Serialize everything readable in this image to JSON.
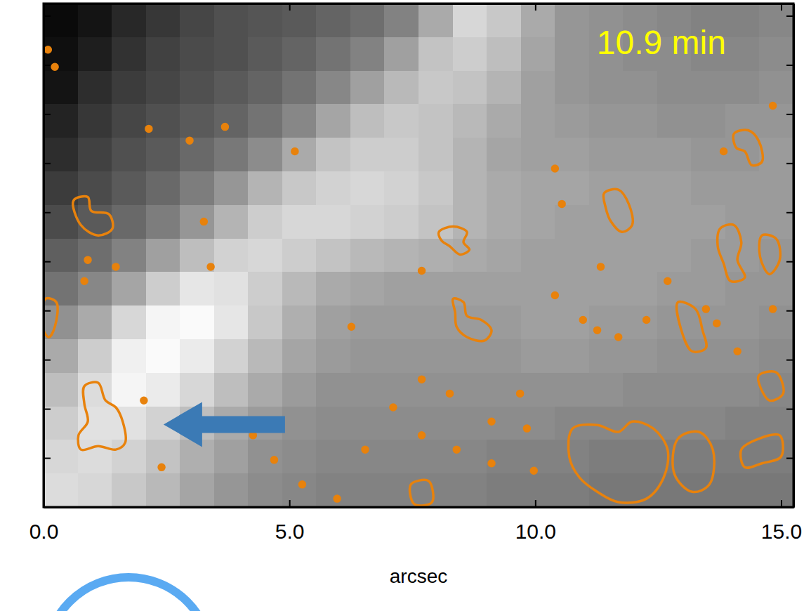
{
  "chart_data": {
    "type": "heatmap",
    "annotation": "10.9 min",
    "xlabel": "arcsec",
    "xlim": [
      0,
      15.25
    ],
    "xticks": [
      {
        "value": 0,
        "label": "0.0"
      },
      {
        "value": 5,
        "label": "5.0"
      },
      {
        "value": 10,
        "label": "10.0"
      },
      {
        "value": 15,
        "label": "15.0"
      }
    ],
    "ylim": [
      0,
      10.25
    ],
    "yticks": [
      0,
      1,
      2,
      3,
      4,
      5,
      6,
      7,
      8,
      9,
      10
    ],
    "tick_labels": "x",
    "crange": [
      0,
      255
    ],
    "cells": [
      [
        10,
        20,
        40,
        55,
        70,
        80,
        85,
        90,
        100,
        110,
        130,
        170,
        215,
        200,
        170,
        150,
        145,
        140,
        135,
        130,
        130,
        135
      ],
      [
        15,
        30,
        50,
        65,
        75,
        80,
        90,
        100,
        115,
        130,
        160,
        195,
        205,
        190,
        165,
        150,
        145,
        140,
        140,
        135,
        135,
        140
      ],
      [
        20,
        45,
        60,
        70,
        80,
        90,
        100,
        115,
        135,
        160,
        185,
        200,
        195,
        180,
        160,
        150,
        145,
        145,
        140,
        140,
        140,
        145
      ],
      [
        35,
        55,
        70,
        80,
        90,
        100,
        115,
        135,
        165,
        190,
        200,
        195,
        185,
        170,
        160,
        155,
        150,
        150,
        145,
        145,
        150,
        150
      ],
      [
        45,
        65,
        80,
        90,
        105,
        120,
        140,
        170,
        195,
        205,
        205,
        195,
        180,
        165,
        160,
        160,
        155,
        155,
        155,
        150,
        150,
        155
      ],
      [
        60,
        75,
        90,
        105,
        125,
        150,
        180,
        200,
        210,
        215,
        210,
        200,
        180,
        170,
        165,
        165,
        160,
        160,
        160,
        155,
        155,
        155
      ],
      [
        75,
        90,
        105,
        125,
        150,
        180,
        205,
        215,
        215,
        210,
        205,
        195,
        180,
        170,
        165,
        160,
        160,
        160,
        160,
        160,
        155,
        155
      ],
      [
        95,
        110,
        130,
        160,
        190,
        210,
        215,
        205,
        195,
        185,
        180,
        175,
        170,
        165,
        160,
        160,
        160,
        160,
        160,
        155,
        155,
        150
      ],
      [
        115,
        135,
        165,
        205,
        230,
        225,
        205,
        185,
        170,
        165,
        160,
        160,
        160,
        160,
        160,
        160,
        160,
        160,
        155,
        155,
        150,
        150
      ],
      [
        145,
        170,
        215,
        245,
        250,
        230,
        200,
        175,
        160,
        155,
        155,
        155,
        155,
        155,
        160,
        160,
        155,
        155,
        150,
        150,
        150,
        145
      ],
      [
        170,
        205,
        240,
        250,
        235,
        210,
        185,
        165,
        155,
        150,
        150,
        150,
        150,
        150,
        155,
        155,
        150,
        150,
        145,
        145,
        145,
        140
      ],
      [
        190,
        220,
        245,
        235,
        215,
        190,
        170,
        155,
        145,
        145,
        145,
        145,
        145,
        145,
        145,
        145,
        145,
        140,
        140,
        140,
        140,
        135
      ],
      [
        205,
        225,
        225,
        210,
        190,
        170,
        155,
        145,
        140,
        140,
        140,
        140,
        140,
        140,
        140,
        135,
        135,
        135,
        135,
        135,
        130,
        130
      ],
      [
        215,
        220,
        210,
        195,
        175,
        160,
        145,
        140,
        135,
        135,
        135,
        135,
        135,
        130,
        130,
        130,
        125,
        125,
        125,
        125,
        125,
        125
      ],
      [
        220,
        215,
        200,
        185,
        165,
        150,
        140,
        135,
        130,
        130,
        130,
        130,
        130,
        125,
        125,
        125,
        120,
        120,
        120,
        120,
        120,
        120
      ]
    ],
    "contours": [
      {
        "x": [
          0.83,
          1.11,
          1.26,
          1.47,
          1.61,
          1.66,
          1.47,
          1.11,
          0.76,
          0.71,
          0.9,
          0.83
        ],
        "y": [
          2.46,
          2.53,
          2.17,
          2.03,
          1.74,
          1.31,
          1.17,
          1.24,
          1.17,
          1.46,
          1.74,
          2.1
        ]
      },
      {
        "x": [
          8.04,
          8.33,
          8.61,
          8.54,
          8.66,
          8.47,
          8.26,
          8.09
        ],
        "y": [
          5.6,
          5.71,
          5.6,
          5.39,
          5.24,
          5.14,
          5.31,
          5.43
        ]
      },
      {
        "x": [
          8.33,
          8.54,
          8.61,
          8.9,
          9.11,
          8.97,
          8.61,
          8.4,
          8.37
        ],
        "y": [
          4.24,
          4.17,
          3.89,
          3.81,
          3.6,
          3.39,
          3.46,
          3.67,
          3.96
        ]
      },
      {
        "x": [
          11.4,
          11.69,
          11.9,
          11.97,
          11.76,
          11.54,
          11.43
        ],
        "y": [
          6.39,
          6.46,
          6.17,
          5.74,
          5.6,
          5.81,
          6.1
        ]
      },
      {
        "x": [
          14.04,
          14.33,
          14.54,
          14.61,
          14.4,
          14.26,
          14.09
        ],
        "y": [
          7.6,
          7.67,
          7.46,
          7.03,
          6.96,
          7.24,
          7.31
        ]
      },
      {
        "x": [
          13.76,
          14.04,
          14.19,
          14.11,
          14.26,
          13.97,
          13.83,
          13.71
        ],
        "y": [
          5.67,
          5.74,
          5.39,
          5.03,
          4.67,
          4.6,
          4.96,
          5.31
        ]
      },
      {
        "x": [
          10.76,
          11.26,
          11.69,
          11.97,
          12.4,
          12.69,
          12.61,
          12.26,
          11.69,
          11.26,
          10.9,
          10.69
        ],
        "y": [
          1.6,
          1.67,
          1.53,
          1.74,
          1.6,
          1.17,
          0.6,
          0.17,
          0.1,
          0.31,
          0.6,
          1.03
        ]
      },
      {
        "x": [
          12.9,
          13.33,
          13.61,
          13.54,
          13.19,
          12.83
        ],
        "y": [
          1.39,
          1.53,
          1.17,
          0.46,
          0.31,
          0.67
        ]
      },
      {
        "x": [
          14.19,
          14.54,
          14.97,
          15.0,
          14.61,
          14.26
        ],
        "y": [
          1.17,
          1.39,
          1.46,
          1.03,
          0.89,
          0.81
        ]
      },
      {
        "x": [
          0.04,
          0.26,
          0.23,
          0.11,
          0.0
        ],
        "y": [
          4.24,
          4.17,
          3.67,
          3.46,
          3.6
        ]
      },
      {
        "x": [
          0.61,
          0.9,
          0.97,
          1.33,
          1.4,
          1.11,
          0.76
        ],
        "y": [
          6.24,
          6.31,
          6.03,
          5.96,
          5.67,
          5.53,
          5.74
        ]
      },
      {
        "x": [
          14.61,
          14.9,
          14.97,
          14.76,
          14.57
        ],
        "y": [
          5.53,
          5.46,
          5.03,
          4.74,
          5.1
        ]
      },
      {
        "x": [
          12.9,
          13.26,
          13.4,
          13.47,
          13.19,
          12.97
        ],
        "y": [
          4.17,
          4.03,
          3.6,
          3.24,
          3.17,
          3.6
        ]
      },
      {
        "x": [
          14.54,
          14.9,
          15.04,
          14.76
        ],
        "y": [
          2.67,
          2.74,
          2.31,
          2.17
        ]
      },
      {
        "x": [
          7.47,
          7.83,
          7.9,
          7.54
        ],
        "y": [
          0.46,
          0.53,
          0.1,
          0.06
        ]
      }
    ],
    "spots": {
      "x": [
        0.09,
        0.23,
        2.14,
        2.97,
        3.69,
        5.11,
        3.26,
        2.04,
        6.26,
        7.69,
        7.69,
        8.26,
        7.11,
        9.11,
        10.4,
        10.54,
        11.33,
        10.4,
        10.97,
        11.26,
        11.69,
        12.26,
        7.69,
        8.4,
        9.69,
        9.83,
        9.97,
        6.54,
        9.11,
        4.69,
        3.4,
        1.47,
        0.83,
        0.9,
        2.4,
        14.83,
        13.83,
        13.47,
        14.11,
        14.83,
        13.69,
        12.69,
        5.97,
        5.26,
        4.26
      ],
      "y": [
        9.31,
        8.96,
        7.7,
        7.46,
        7.74,
        7.24,
        5.81,
        2.17,
        3.67,
        4.81,
        2.6,
        2.31,
        2.03,
        1.74,
        6.89,
        6.17,
        4.89,
        4.31,
        3.81,
        3.6,
        3.46,
        3.81,
        1.46,
        1.17,
        2.31,
        1.6,
        0.74,
        1.17,
        0.89,
        0.96,
        4.89,
        4.89,
        4.6,
        5.03,
        0.81,
        8.17,
        7.24,
        4.03,
        3.17,
        4.03,
        3.74,
        4.6,
        0.17,
        0.46,
        1.46
      ]
    }
  }
}
